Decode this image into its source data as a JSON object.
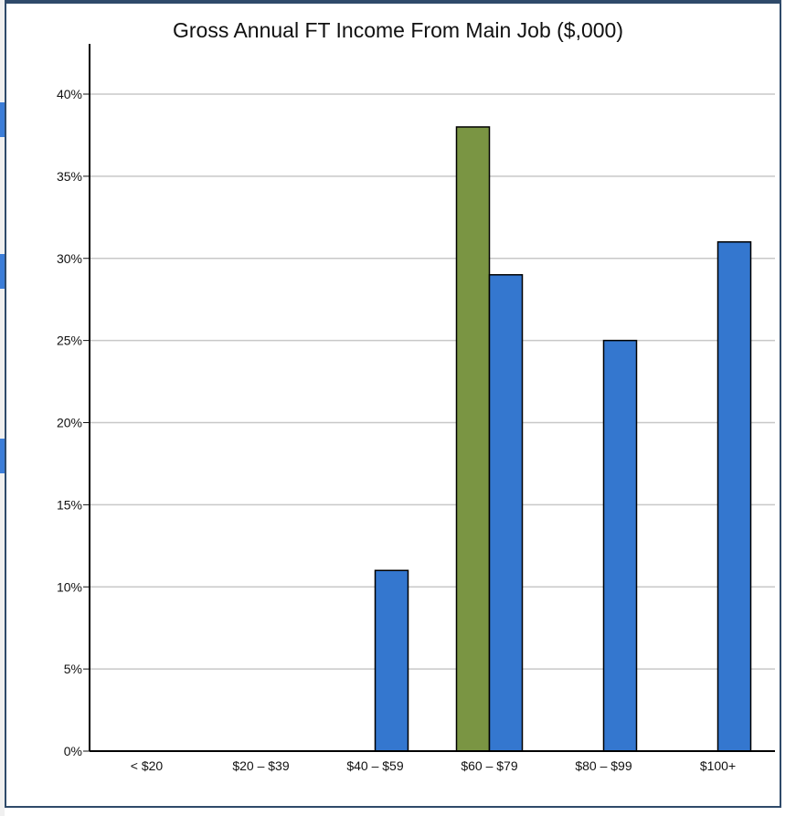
{
  "chart_data": {
    "type": "bar",
    "title": "Gross Annual FT Income From Main Job ($,000)",
    "xlabel": "",
    "ylabel": "",
    "categories": [
      "< $20",
      "$20 – $39",
      "$40 – $59",
      "$60 – $79",
      "$80 – $99",
      "$100+"
    ],
    "series": [
      {
        "values": [
          0,
          0,
          0,
          38,
          0,
          0
        ],
        "color": "#7a9543"
      },
      {
        "values": [
          0,
          0,
          11,
          29,
          25,
          31
        ],
        "color": "#3477cf"
      }
    ],
    "ylim": [
      0,
      40
    ],
    "yticks": [
      0,
      5,
      10,
      15,
      20,
      25,
      30,
      35,
      40
    ],
    "ytick_labels": [
      "0%",
      "5%",
      "10%",
      "15%",
      "20%",
      "25%",
      "30%",
      "35%",
      "40%"
    ],
    "grid": true,
    "gridline_color": "#c8c8c8",
    "legend": "none"
  }
}
